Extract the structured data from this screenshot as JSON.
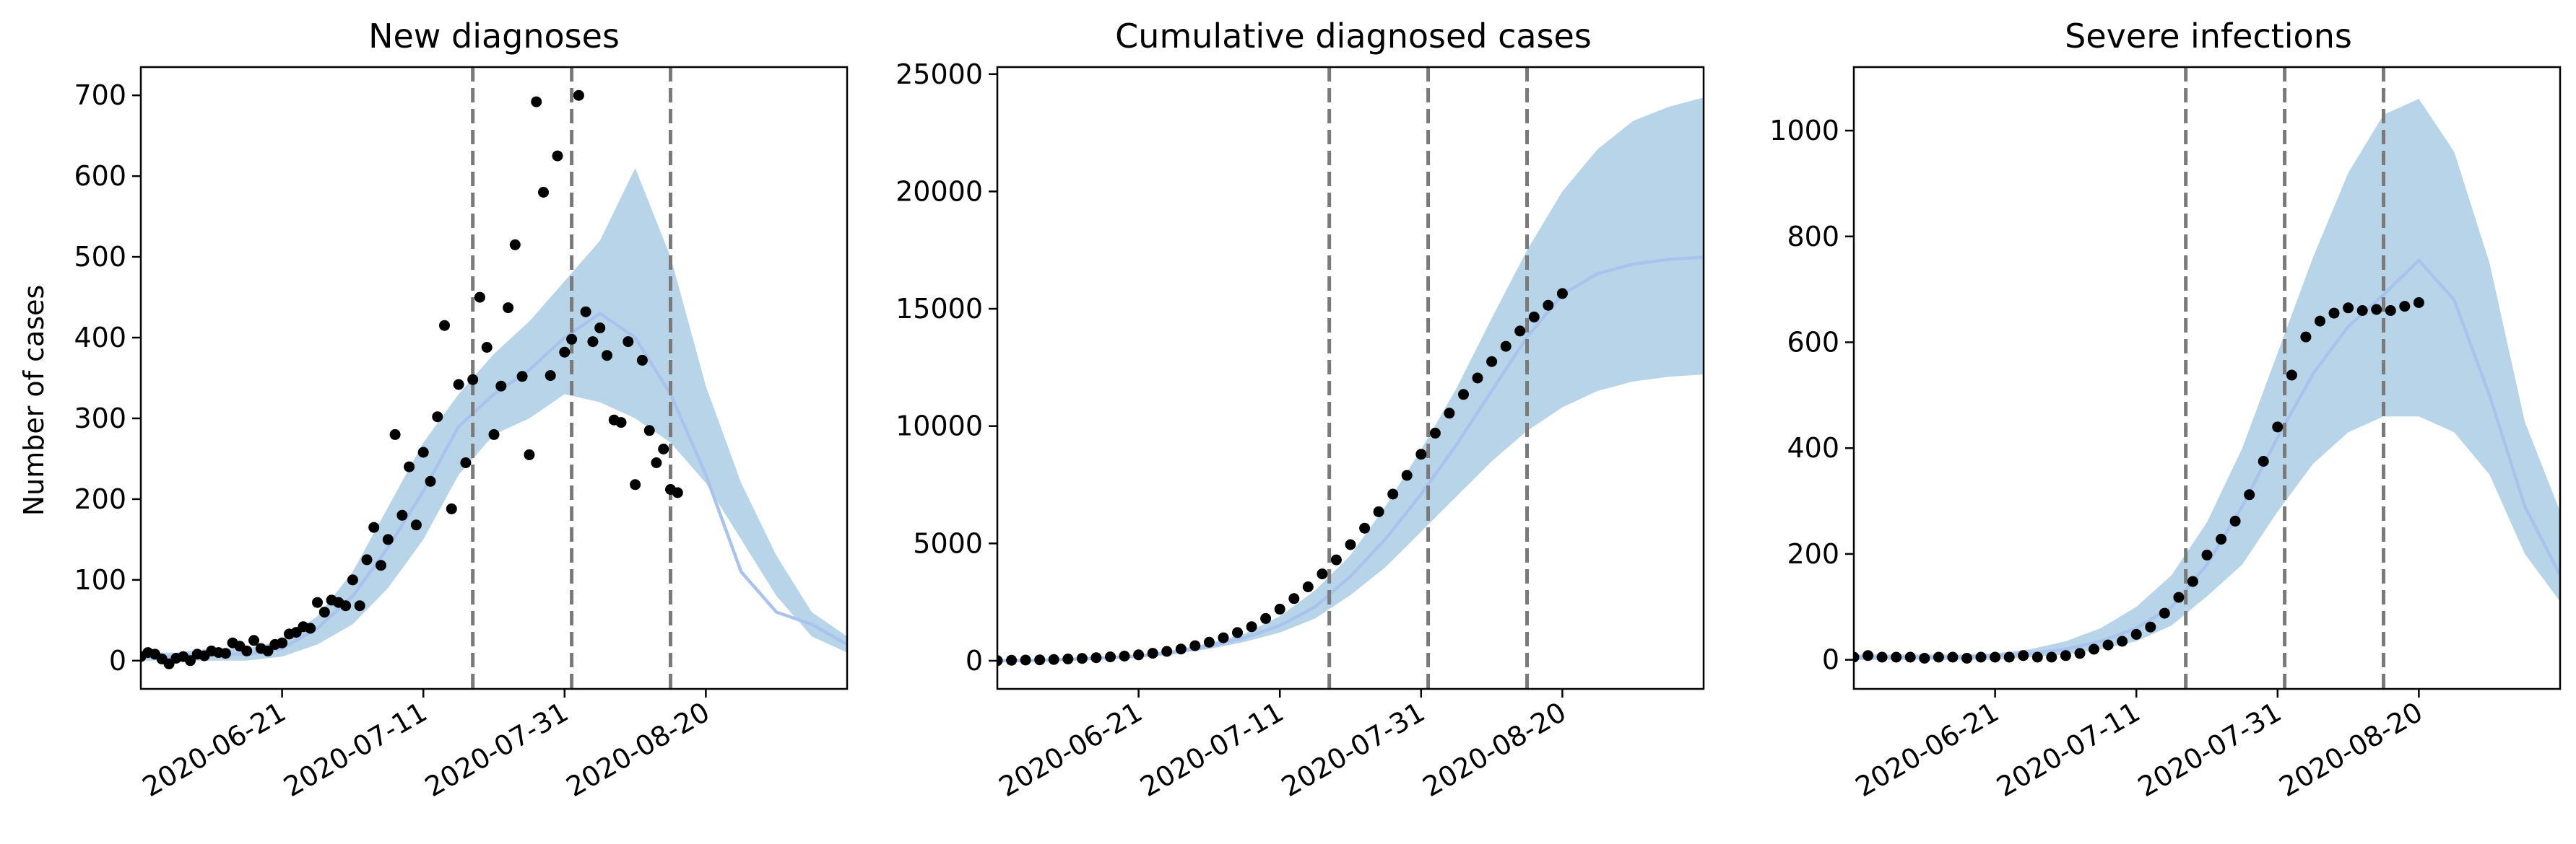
{
  "chart_data": [
    {
      "type": "line",
      "title": "New diagnoses",
      "ylabel": "Number of cases",
      "xlabel": "",
      "x_ticks": [
        "2020-06-21",
        "2020-07-11",
        "2020-07-31",
        "2020-08-20"
      ],
      "y_ticks": [
        0,
        100,
        200,
        300,
        400,
        500,
        600,
        700
      ],
      "xlim": [
        "2020-06-01",
        "2020-09-09"
      ],
      "ylim": [
        -35,
        735
      ],
      "vlines": [
        "2020-07-18",
        "2020-08-01",
        "2020-08-15"
      ],
      "band_dates": [
        "2020-06-01",
        "2020-06-06",
        "2020-06-11",
        "2020-06-16",
        "2020-06-21",
        "2020-06-26",
        "2020-07-01",
        "2020-07-06",
        "2020-07-11",
        "2020-07-16",
        "2020-07-21",
        "2020-07-26",
        "2020-07-31",
        "2020-08-05",
        "2020-08-10",
        "2020-08-15",
        "2020-08-20",
        "2020-08-25",
        "2020-08-30",
        "2020-09-04",
        "2020-09-09"
      ],
      "band_lower": [
        0,
        0,
        0,
        0,
        5,
        20,
        45,
        90,
        150,
        230,
        280,
        300,
        330,
        320,
        300,
        270,
        220,
        150,
        80,
        30,
        10
      ],
      "band_upper": [
        10,
        10,
        15,
        15,
        25,
        55,
        110,
        190,
        270,
        330,
        380,
        420,
        470,
        520,
        610,
        500,
        340,
        220,
        130,
        60,
        30
      ],
      "median": [
        5,
        5,
        8,
        8,
        15,
        40,
        80,
        140,
        210,
        290,
        330,
        360,
        400,
        430,
        400,
        330,
        230,
        110,
        60,
        45,
        20
      ],
      "observed": [
        [
          "2020-06-01",
          5
        ],
        [
          "2020-06-02",
          10
        ],
        [
          "2020-06-03",
          8
        ],
        [
          "2020-06-04",
          2
        ],
        [
          "2020-06-05",
          -4
        ],
        [
          "2020-06-06",
          3
        ],
        [
          "2020-06-07",
          5
        ],
        [
          "2020-06-08",
          0
        ],
        [
          "2020-06-09",
          8
        ],
        [
          "2020-06-10",
          6
        ],
        [
          "2020-06-11",
          12
        ],
        [
          "2020-06-12",
          10
        ],
        [
          "2020-06-13",
          9
        ],
        [
          "2020-06-14",
          22
        ],
        [
          "2020-06-15",
          18
        ],
        [
          "2020-06-16",
          12
        ],
        [
          "2020-06-17",
          25
        ],
        [
          "2020-06-18",
          15
        ],
        [
          "2020-06-19",
          12
        ],
        [
          "2020-06-20",
          20
        ],
        [
          "2020-06-21",
          22
        ],
        [
          "2020-06-22",
          33
        ],
        [
          "2020-06-23",
          35
        ],
        [
          "2020-06-24",
          42
        ],
        [
          "2020-06-25",
          40
        ],
        [
          "2020-06-26",
          72
        ],
        [
          "2020-06-27",
          60
        ],
        [
          "2020-06-28",
          75
        ],
        [
          "2020-06-29",
          72
        ],
        [
          "2020-06-30",
          68
        ],
        [
          "2020-07-01",
          100
        ],
        [
          "2020-07-02",
          68
        ],
        [
          "2020-07-03",
          125
        ],
        [
          "2020-07-04",
          165
        ],
        [
          "2020-07-05",
          118
        ],
        [
          "2020-07-06",
          150
        ],
        [
          "2020-07-07",
          280
        ],
        [
          "2020-07-08",
          180
        ],
        [
          "2020-07-09",
          240
        ],
        [
          "2020-07-10",
          168
        ],
        [
          "2020-07-11",
          258
        ],
        [
          "2020-07-12",
          222
        ],
        [
          "2020-07-13",
          302
        ],
        [
          "2020-07-14",
          415
        ],
        [
          "2020-07-15",
          188
        ],
        [
          "2020-07-16",
          342
        ],
        [
          "2020-07-17",
          245
        ],
        [
          "2020-07-18",
          348
        ],
        [
          "2020-07-19",
          450
        ],
        [
          "2020-07-20",
          388
        ],
        [
          "2020-07-21",
          280
        ],
        [
          "2020-07-22",
          340
        ],
        [
          "2020-07-23",
          437
        ],
        [
          "2020-07-24",
          515
        ],
        [
          "2020-07-25",
          352
        ],
        [
          "2020-07-26",
          255
        ],
        [
          "2020-07-27",
          692
        ],
        [
          "2020-07-28",
          580
        ],
        [
          "2020-07-29",
          353
        ],
        [
          "2020-07-30",
          625
        ],
        [
          "2020-07-31",
          382
        ],
        [
          "2020-08-01",
          398
        ],
        [
          "2020-08-02",
          700
        ],
        [
          "2020-08-03",
          432
        ],
        [
          "2020-08-04",
          395
        ],
        [
          "2020-08-05",
          412
        ],
        [
          "2020-08-06",
          378
        ],
        [
          "2020-08-07",
          298
        ],
        [
          "2020-08-08",
          295
        ],
        [
          "2020-08-09",
          395
        ],
        [
          "2020-08-10",
          218
        ],
        [
          "2020-08-11",
          372
        ],
        [
          "2020-08-12",
          285
        ],
        [
          "2020-08-13",
          245
        ],
        [
          "2020-08-14",
          262
        ],
        [
          "2020-08-15",
          212
        ],
        [
          "2020-08-16",
          208
        ]
      ]
    },
    {
      "type": "line",
      "title": "Cumulative diagnosed cases",
      "ylabel": "",
      "xlabel": "",
      "x_ticks": [
        "2020-06-21",
        "2020-07-11",
        "2020-07-31",
        "2020-08-20"
      ],
      "y_ticks": [
        0,
        5000,
        10000,
        15000,
        20000,
        25000
      ],
      "xlim": [
        "2020-06-01",
        "2020-09-09"
      ],
      "ylim": [
        -1200,
        25300
      ],
      "vlines": [
        "2020-07-18",
        "2020-08-01",
        "2020-08-15"
      ],
      "band_dates": [
        "2020-06-01",
        "2020-06-06",
        "2020-06-11",
        "2020-06-16",
        "2020-06-21",
        "2020-06-26",
        "2020-07-01",
        "2020-07-06",
        "2020-07-11",
        "2020-07-16",
        "2020-07-21",
        "2020-07-26",
        "2020-07-31",
        "2020-08-05",
        "2020-08-10",
        "2020-08-15",
        "2020-08-20",
        "2020-08-25",
        "2020-08-30",
        "2020-09-04",
        "2020-09-09"
      ],
      "band_lower": [
        0,
        0,
        50,
        100,
        150,
        300,
        500,
        800,
        1200,
        1800,
        2800,
        4000,
        5500,
        7000,
        8500,
        9800,
        10800,
        11500,
        11900,
        12100,
        12200
      ],
      "band_upper": [
        0,
        20,
        80,
        150,
        250,
        450,
        750,
        1150,
        1900,
        3000,
        4500,
        6600,
        9000,
        11600,
        14600,
        17500,
        20000,
        21800,
        23000,
        23600,
        24000
      ],
      "median": [
        0,
        10,
        60,
        120,
        200,
        350,
        620,
        980,
        1500,
        2300,
        3600,
        5200,
        7100,
        9200,
        11500,
        13800,
        15600,
        16500,
        16900,
        17100,
        17200
      ],
      "observed": [
        [
          "2020-06-01",
          5
        ],
        [
          "2020-06-03",
          20
        ],
        [
          "2020-06-05",
          30
        ],
        [
          "2020-06-07",
          40
        ],
        [
          "2020-06-09",
          55
        ],
        [
          "2020-06-11",
          75
        ],
        [
          "2020-06-13",
          100
        ],
        [
          "2020-06-15",
          130
        ],
        [
          "2020-06-17",
          165
        ],
        [
          "2020-06-19",
          200
        ],
        [
          "2020-06-21",
          250
        ],
        [
          "2020-06-23",
          320
        ],
        [
          "2020-06-25",
          400
        ],
        [
          "2020-06-27",
          500
        ],
        [
          "2020-06-29",
          640
        ],
        [
          "2020-07-01",
          790
        ],
        [
          "2020-07-03",
          980
        ],
        [
          "2020-07-05",
          1200
        ],
        [
          "2020-07-07",
          1450
        ],
        [
          "2020-07-09",
          1800
        ],
        [
          "2020-07-11",
          2200
        ],
        [
          "2020-07-13",
          2650
        ],
        [
          "2020-07-15",
          3150
        ],
        [
          "2020-07-17",
          3700
        ],
        [
          "2020-07-19",
          4300
        ],
        [
          "2020-07-21",
          4950
        ],
        [
          "2020-07-23",
          5650
        ],
        [
          "2020-07-25",
          6350
        ],
        [
          "2020-07-27",
          7100
        ],
        [
          "2020-07-29",
          7900
        ],
        [
          "2020-07-31",
          8800
        ],
        [
          "2020-08-02",
          9700
        ],
        [
          "2020-08-04",
          10550
        ],
        [
          "2020-08-06",
          11350
        ],
        [
          "2020-08-08",
          12050
        ],
        [
          "2020-08-10",
          12750
        ],
        [
          "2020-08-12",
          13400
        ],
        [
          "2020-08-14",
          14050
        ],
        [
          "2020-08-16",
          14650
        ],
        [
          "2020-08-18",
          15150
        ],
        [
          "2020-08-20",
          15650
        ]
      ]
    },
    {
      "type": "line",
      "title": "Severe infections",
      "ylabel": "",
      "xlabel": "",
      "x_ticks": [
        "2020-06-21",
        "2020-07-11",
        "2020-07-31",
        "2020-08-20"
      ],
      "y_ticks": [
        0,
        200,
        400,
        600,
        800,
        1000
      ],
      "xlim": [
        "2020-06-01",
        "2020-09-09"
      ],
      "ylim": [
        -55,
        1120
      ],
      "vlines": [
        "2020-07-18",
        "2020-08-01",
        "2020-08-15"
      ],
      "band_dates": [
        "2020-06-01",
        "2020-06-06",
        "2020-06-11",
        "2020-06-16",
        "2020-06-21",
        "2020-06-26",
        "2020-07-01",
        "2020-07-06",
        "2020-07-11",
        "2020-07-16",
        "2020-07-21",
        "2020-07-26",
        "2020-07-31",
        "2020-08-05",
        "2020-08-10",
        "2020-08-15",
        "2020-08-20",
        "2020-08-25",
        "2020-08-30",
        "2020-09-04",
        "2020-09-09"
      ],
      "band_lower": [
        0,
        0,
        0,
        0,
        0,
        5,
        10,
        20,
        35,
        65,
        120,
        180,
        280,
        370,
        430,
        460,
        460,
        430,
        350,
        200,
        110
      ],
      "band_upper": [
        10,
        10,
        10,
        10,
        12,
        20,
        35,
        60,
        100,
        160,
        260,
        400,
        580,
        760,
        920,
        1030,
        1060,
        960,
        750,
        450,
        280
      ],
      "median": [
        5,
        5,
        5,
        5,
        8,
        12,
        20,
        35,
        60,
        100,
        180,
        290,
        420,
        540,
        630,
        690,
        755,
        680,
        500,
        290,
        160
      ],
      "observed": [
        [
          "2020-06-01",
          5
        ],
        [
          "2020-06-03",
          8
        ],
        [
          "2020-06-05",
          5
        ],
        [
          "2020-06-07",
          5
        ],
        [
          "2020-06-09",
          5
        ],
        [
          "2020-06-11",
          3
        ],
        [
          "2020-06-13",
          5
        ],
        [
          "2020-06-15",
          5
        ],
        [
          "2020-06-17",
          3
        ],
        [
          "2020-06-19",
          5
        ],
        [
          "2020-06-21",
          5
        ],
        [
          "2020-06-23",
          5
        ],
        [
          "2020-06-25",
          8
        ],
        [
          "2020-06-27",
          5
        ],
        [
          "2020-06-29",
          5
        ],
        [
          "2020-07-01",
          8
        ],
        [
          "2020-07-03",
          12
        ],
        [
          "2020-07-05",
          20
        ],
        [
          "2020-07-07",
          28
        ],
        [
          "2020-07-09",
          35
        ],
        [
          "2020-07-11",
          48
        ],
        [
          "2020-07-13",
          62
        ],
        [
          "2020-07-15",
          88
        ],
        [
          "2020-07-17",
          118
        ],
        [
          "2020-07-19",
          148
        ],
        [
          "2020-07-21",
          198
        ],
        [
          "2020-07-23",
          228
        ],
        [
          "2020-07-25",
          262
        ],
        [
          "2020-07-27",
          312
        ],
        [
          "2020-07-29",
          375
        ],
        [
          "2020-07-31",
          440
        ],
        [
          "2020-08-02",
          538
        ],
        [
          "2020-08-04",
          610
        ],
        [
          "2020-08-06",
          640
        ],
        [
          "2020-08-08",
          655
        ],
        [
          "2020-08-10",
          665
        ],
        [
          "2020-08-12",
          660
        ],
        [
          "2020-08-14",
          662
        ],
        [
          "2020-08-16",
          660
        ],
        [
          "2020-08-18",
          668
        ],
        [
          "2020-08-20",
          675
        ]
      ]
    }
  ]
}
